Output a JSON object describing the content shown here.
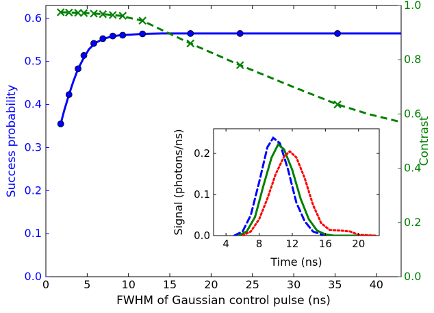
{
  "chart_data": [
    {
      "type": "line",
      "xlabel": "FWHM of Gaussian control pulse (ns)",
      "ylabel": "Success probability",
      "ylabel_right": "Contrast",
      "xlim": [
        0,
        43
      ],
      "ylim": [
        0.0,
        0.63
      ],
      "ylim_right": [
        0.0,
        1.0
      ],
      "x_ticks": [
        "0",
        "5",
        "10",
        "15",
        "20",
        "25",
        "30",
        "35",
        "40"
      ],
      "y_ticks": [
        "0.0",
        "0.1",
        "0.2",
        "0.3",
        "0.4",
        "0.5",
        "0.6"
      ],
      "y_right_ticks": [
        "0.0",
        "0.2",
        "0.4",
        "0.6",
        "0.8",
        "1.0"
      ],
      "grid": false,
      "legend": "none",
      "colors": {
        "left_axis": "#0000ff",
        "right_axis": "#008000"
      },
      "series": [
        {
          "axis": "left",
          "style": "solid line with circle markers",
          "color": "#0000ff",
          "curve": {
            "x": [
              1.8,
              2.2,
              2.8,
              3.3,
              3.9,
              4.5,
              5.2,
              6.0,
              7.0,
              8.0,
              9.0,
              10.0,
              11.7,
              14.0,
              17.5,
              23.5,
              30.0,
              35.3,
              43.0
            ],
            "y": [
              0.355,
              0.385,
              0.423,
              0.452,
              0.483,
              0.505,
              0.528,
              0.543,
              0.553,
              0.558,
              0.561,
              0.562,
              0.564,
              0.565,
              0.565,
              0.565,
              0.565,
              0.565,
              0.565
            ]
          },
          "markers": {
            "x": [
              1.8,
              2.8,
              3.9,
              4.6,
              5.8,
              6.9,
              8.1,
              9.3,
              11.7,
              17.5,
              23.5,
              35.3
            ],
            "y": [
              0.355,
              0.423,
              0.483,
              0.514,
              0.542,
              0.553,
              0.559,
              0.561,
              0.564,
              0.565,
              0.565,
              0.565
            ]
          }
        },
        {
          "axis": "right",
          "style": "dashed line with x markers",
          "color": "#008000",
          "curve": {
            "x": [
              1.8,
              3.0,
              5.0,
              7.0,
              9.0,
              10.0,
              11.7,
              14.0,
              17.5,
              20.5,
              23.5,
              29.5,
              35.3,
              39.0,
              43.0
            ],
            "y": [
              0.975,
              0.974,
              0.972,
              0.968,
              0.962,
              0.955,
              0.944,
              0.91,
              0.86,
              0.82,
              0.78,
              0.705,
              0.635,
              0.6,
              0.57
            ]
          },
          "markers": {
            "x": [
              1.8,
              2.8,
              3.9,
              4.6,
              5.8,
              6.9,
              8.1,
              9.3,
              11.7,
              17.5,
              23.5,
              35.3
            ],
            "y": [
              0.975,
              0.974,
              0.973,
              0.972,
              0.97,
              0.968,
              0.965,
              0.962,
              0.944,
              0.86,
              0.78,
              0.635
            ]
          }
        }
      ]
    },
    {
      "type": "line",
      "role": "inset",
      "xlabel": "Time (ns)",
      "ylabel": "Signal (photons/ns)",
      "xlim": [
        2.5,
        22.5
      ],
      "ylim": [
        0.0,
        0.26
      ],
      "x_ticks": [
        "4",
        "8",
        "12",
        "16",
        "20"
      ],
      "y_ticks": [
        "0.0",
        "0.1",
        "0.2"
      ],
      "grid": false,
      "legend": "none",
      "series": [
        {
          "style": "dashed",
          "color": "#0000ff",
          "x": [
            5.0,
            6.0,
            7.0,
            8.0,
            9.0,
            9.7,
            10.5,
            11.5,
            12.5,
            13.5,
            14.5,
            15.5,
            16.5,
            20.0,
            22.0
          ],
          "y": [
            0.0,
            0.01,
            0.05,
            0.13,
            0.215,
            0.238,
            0.225,
            0.16,
            0.08,
            0.035,
            0.01,
            0.003,
            0.0,
            0.0,
            0.0
          ]
        },
        {
          "style": "solid",
          "color": "#008000",
          "x": [
            5.5,
            6.5,
            7.5,
            8.5,
            9.5,
            10.3,
            11.0,
            12.0,
            13.0,
            14.0,
            15.0,
            16.0,
            17.0,
            20.0,
            22.0
          ],
          "y": [
            0.0,
            0.01,
            0.045,
            0.12,
            0.19,
            0.222,
            0.21,
            0.16,
            0.09,
            0.04,
            0.012,
            0.003,
            0.0,
            0.0,
            0.0
          ]
        },
        {
          "style": "dotted",
          "color": "#ff0000",
          "x": [
            6.0,
            7.0,
            8.0,
            9.0,
            10.0,
            11.0,
            11.7,
            12.5,
            13.5,
            14.5,
            15.5,
            16.5,
            18.0,
            19.0,
            20.0,
            22.0
          ],
          "y": [
            0.0,
            0.01,
            0.04,
            0.09,
            0.15,
            0.192,
            0.205,
            0.19,
            0.14,
            0.075,
            0.03,
            0.014,
            0.012,
            0.01,
            0.002,
            0.0
          ]
        }
      ]
    }
  ]
}
